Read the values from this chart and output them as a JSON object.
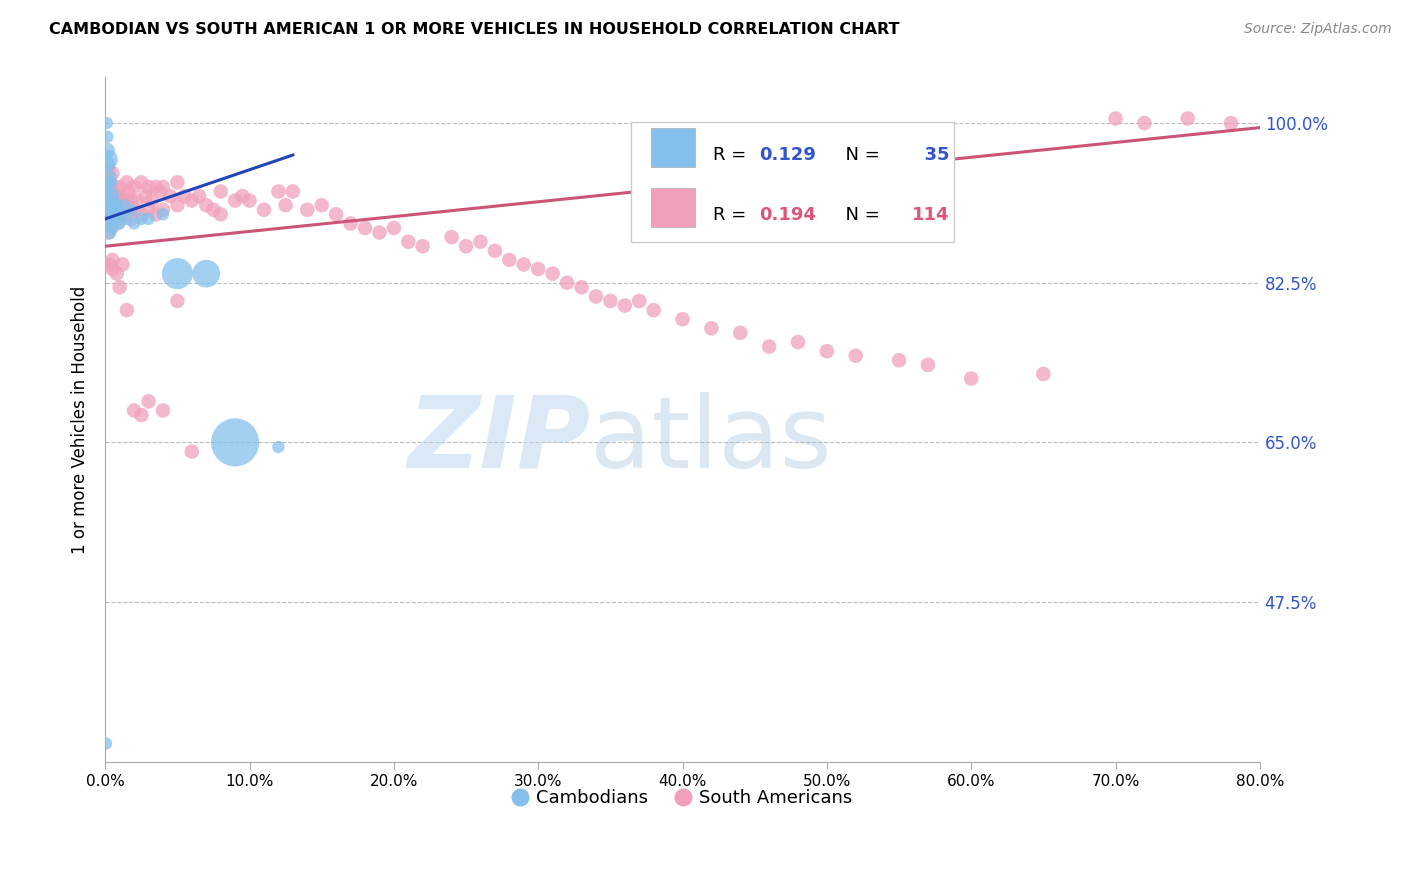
{
  "title": "CAMBODIAN VS SOUTH AMERICAN 1 OR MORE VEHICLES IN HOUSEHOLD CORRELATION CHART",
  "source": "Source: ZipAtlas.com",
  "ylabel": "1 or more Vehicles in Household",
  "xlim": [
    0.0,
    80.0
  ],
  "ylim": [
    30.0,
    105.0
  ],
  "yticks": [
    47.5,
    65.0,
    82.5,
    100.0
  ],
  "xticks": [
    0.0,
    10.0,
    20.0,
    30.0,
    40.0,
    50.0,
    60.0,
    70.0,
    80.0
  ],
  "legend_cambodian": "Cambodians",
  "legend_south_american": "South Americans",
  "r_cambodian": 0.129,
  "n_cambodian": 35,
  "r_south_american": 0.194,
  "n_south_american": 114,
  "color_cambodian": "#85C0EC",
  "color_south_american": "#F0A0B8",
  "color_blue_text": "#3355CC",
  "color_pink_text": "#DD5577",
  "color_line_cambodian": "#2244BB",
  "color_line_south_american": "#CC5577",
  "color_grid": "#BBBBBB",
  "color_right_labels": "#3355CC",
  "background_color": "#FFFFFF",
  "cam_line_x0": 0.0,
  "cam_line_y0": 89.5,
  "cam_line_x1": 13.0,
  "cam_line_y1": 96.5,
  "sa_line_x0": 0.0,
  "sa_line_y0": 86.5,
  "sa_line_x1": 80.0,
  "sa_line_y1": 99.5,
  "cambodian_x": [
    0.1,
    0.15,
    0.15,
    0.2,
    0.2,
    0.2,
    0.25,
    0.3,
    0.3,
    0.3,
    0.35,
    0.4,
    0.4,
    0.5,
    0.5,
    0.6,
    0.7,
    0.8,
    0.9,
    1.0,
    1.1,
    1.3,
    1.5,
    1.8,
    2.0,
    2.5,
    3.0,
    4.0,
    5.0,
    7.0,
    9.0,
    12.0,
    0.15,
    0.1,
    0.05
  ],
  "cambodian_y": [
    95.5,
    97.0,
    93.0,
    96.0,
    94.0,
    91.5,
    89.5,
    92.0,
    90.0,
    88.0,
    91.0,
    93.5,
    89.0,
    91.5,
    88.5,
    90.0,
    89.5,
    91.0,
    90.5,
    89.0,
    90.0,
    91.0,
    89.5,
    90.5,
    89.0,
    89.5,
    89.5,
    90.0,
    83.5,
    83.5,
    65.0,
    64.5,
    98.5,
    100.0,
    32.0
  ],
  "cambodian_sizes": [
    150,
    120,
    100,
    200,
    150,
    120,
    80,
    200,
    150,
    100,
    80,
    80,
    80,
    80,
    80,
    80,
    80,
    80,
    80,
    80,
    80,
    80,
    80,
    80,
    80,
    80,
    80,
    80,
    500,
    400,
    1200,
    80,
    80,
    80,
    80
  ],
  "south_american_x": [
    0.1,
    0.1,
    0.15,
    0.15,
    0.2,
    0.2,
    0.2,
    0.3,
    0.3,
    0.4,
    0.4,
    0.5,
    0.5,
    0.6,
    0.6,
    0.7,
    0.8,
    0.8,
    0.9,
    1.0,
    1.0,
    1.1,
    1.2,
    1.3,
    1.4,
    1.5,
    1.5,
    1.6,
    1.8,
    1.8,
    2.0,
    2.0,
    2.2,
    2.5,
    2.5,
    2.8,
    3.0,
    3.0,
    3.2,
    3.5,
    3.5,
    3.8,
    4.0,
    4.0,
    4.5,
    5.0,
    5.0,
    5.5,
    6.0,
    6.5,
    7.0,
    7.5,
    8.0,
    8.0,
    9.0,
    9.5,
    10.0,
    11.0,
    12.0,
    12.5,
    13.0,
    14.0,
    15.0,
    16.0,
    17.0,
    18.0,
    19.0,
    20.0,
    21.0,
    22.0,
    24.0,
    25.0,
    26.0,
    27.0,
    28.0,
    29.0,
    30.0,
    31.0,
    32.0,
    33.0,
    34.0,
    35.0,
    36.0,
    37.0,
    38.0,
    40.0,
    42.0,
    44.0,
    46.0,
    48.0,
    50.0,
    52.0,
    55.0,
    57.0,
    60.0,
    65.0,
    70.0,
    72.0,
    75.0,
    78.0,
    0.2,
    0.3,
    0.5,
    0.5,
    0.8,
    1.0,
    1.2,
    1.5,
    2.0,
    2.5,
    3.0,
    4.0,
    5.0,
    6.0
  ],
  "south_american_y": [
    92.0,
    89.0,
    93.5,
    91.0,
    95.0,
    92.5,
    89.5,
    94.0,
    91.0,
    93.0,
    90.0,
    94.5,
    91.5,
    93.0,
    90.5,
    92.0,
    91.0,
    89.0,
    90.5,
    93.0,
    90.0,
    91.5,
    92.0,
    91.0,
    90.0,
    93.5,
    91.0,
    92.5,
    91.5,
    89.5,
    93.0,
    90.5,
    91.5,
    93.5,
    90.0,
    92.0,
    93.0,
    90.5,
    91.5,
    93.0,
    90.0,
    92.5,
    93.0,
    90.5,
    92.0,
    93.5,
    91.0,
    92.0,
    91.5,
    92.0,
    91.0,
    90.5,
    92.5,
    90.0,
    91.5,
    92.0,
    91.5,
    90.5,
    92.5,
    91.0,
    92.5,
    90.5,
    91.0,
    90.0,
    89.0,
    88.5,
    88.0,
    88.5,
    87.0,
    86.5,
    87.5,
    86.5,
    87.0,
    86.0,
    85.0,
    84.5,
    84.0,
    83.5,
    82.5,
    82.0,
    81.0,
    80.5,
    80.0,
    80.5,
    79.5,
    78.5,
    77.5,
    77.0,
    75.5,
    76.0,
    75.0,
    74.5,
    74.0,
    73.5,
    72.0,
    72.5,
    100.5,
    100.0,
    100.5,
    100.0,
    88.0,
    84.5,
    85.0,
    84.0,
    83.5,
    82.0,
    84.5,
    79.5,
    68.5,
    68.0,
    69.5,
    68.5,
    80.5,
    64.0
  ]
}
